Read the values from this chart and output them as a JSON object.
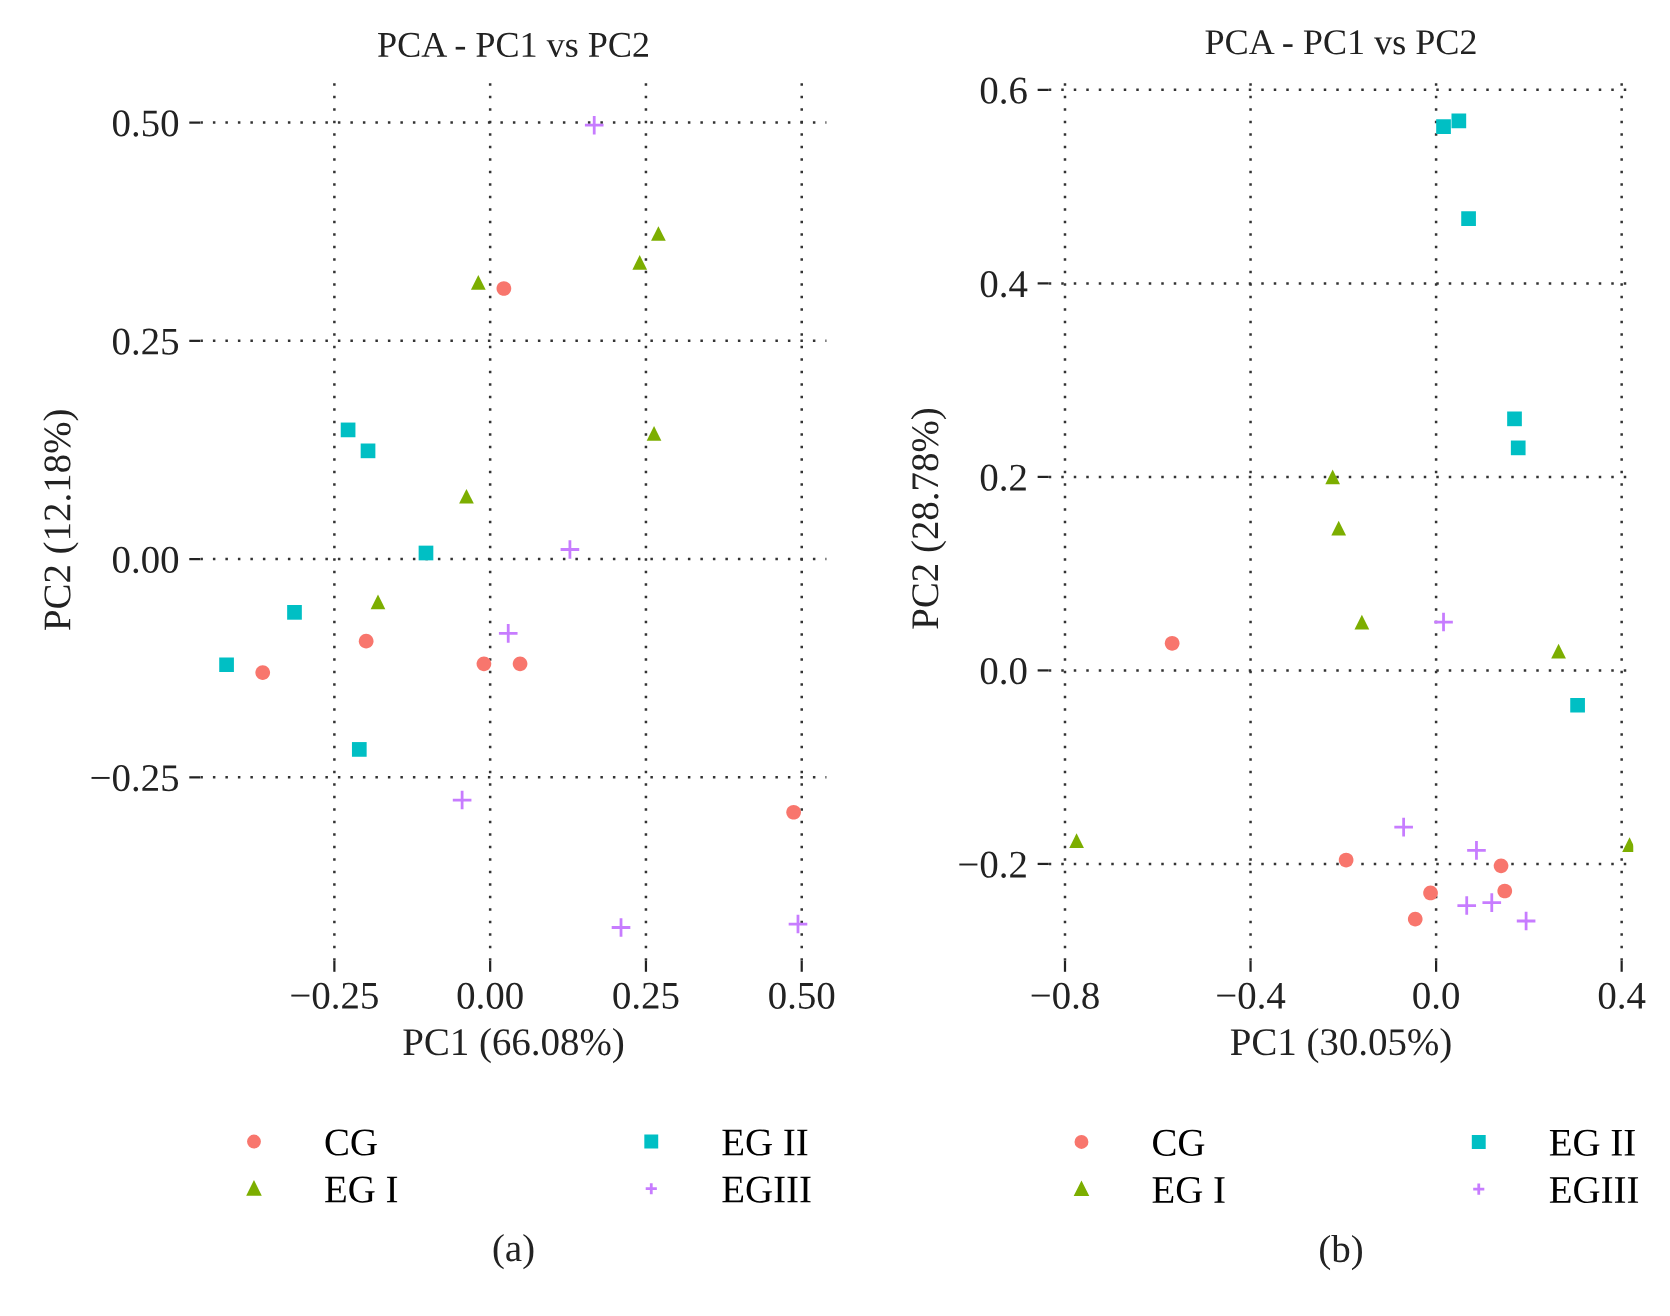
{
  "chart_data": [
    {
      "type": "scatter",
      "title": "PCA - PC1 vs PC2",
      "xlabel": "PC1 (66.08%)",
      "ylabel": "PC2 (12.18%)",
      "annotations": [
        "(a)"
      ],
      "xlim": [
        -0.465,
        0.54
      ],
      "ylim": [
        -0.46,
        0.55
      ],
      "xticks": [
        {
          "value": -0.25,
          "label": "−0.25"
        },
        {
          "value": 0,
          "label": "0.00"
        },
        {
          "value": 0.25,
          "label": "0.25"
        },
        {
          "value": 0.5,
          "label": "0.50"
        }
      ],
      "yticks": [
        {
          "value": -0.25,
          "label": "−0.25"
        },
        {
          "value": 0,
          "label": "0.00"
        },
        {
          "value": 0.25,
          "label": "0.25"
        },
        {
          "value": 0.5,
          "label": "0.50"
        }
      ],
      "grid": true,
      "legend": "bottom",
      "series": [
        {
          "name": "CG",
          "color": "#f8766d",
          "marker": "circle",
          "x": [
            0.022,
            -0.365,
            -0.199,
            -0.01,
            0.048,
            0.487
          ],
          "values": [
            0.31,
            -0.13,
            -0.094,
            -0.12,
            -0.12,
            -0.29
          ]
        },
        {
          "name": "EG I",
          "color": "#7cae00",
          "marker": "triangle",
          "x": [
            -0.019,
            0.24,
            0.27,
            0.263,
            -0.038,
            -0.18
          ],
          "values": [
            0.317,
            0.34,
            0.373,
            0.144,
            0.072,
            -0.049
          ]
        },
        {
          "name": "EG II",
          "color": "#00bfc4",
          "marker": "square",
          "x": [
            -0.228,
            -0.196,
            -0.103,
            -0.314,
            -0.423,
            -0.21
          ],
          "values": [
            0.148,
            0.124,
            0.007,
            -0.061,
            -0.121,
            -0.218
          ]
        },
        {
          "name": "EGIII",
          "color": "#c77cff",
          "marker": "cross",
          "x": [
            0.167,
            0.128,
            0.029,
            -0.045,
            0.21,
            0.494
          ],
          "values": [
            0.497,
            0.011,
            -0.085,
            -0.276,
            -0.422,
            -0.418
          ]
        }
      ]
    },
    {
      "type": "scatter",
      "title": "PCA - PC1 vs PC2",
      "xlabel": "PC1 (30.05%)",
      "ylabel": "PC2 (28.78%)",
      "annotations": [
        "(b)"
      ],
      "xlim": [
        -0.835,
        0.425
      ],
      "ylim": [
        -0.3,
        0.614
      ],
      "xticks": [
        {
          "value": -0.8,
          "label": "−0.8"
        },
        {
          "value": -0.4,
          "label": "−0.4"
        },
        {
          "value": 0,
          "label": "0.0"
        },
        {
          "value": 0.4,
          "label": "0.4"
        }
      ],
      "yticks": [
        {
          "value": -0.2,
          "label": "−0.2"
        },
        {
          "value": 0,
          "label": "0.0"
        },
        0.2,
        0.4,
        0.6
      ],
      "grid": true,
      "legend": "bottom",
      "series": [
        {
          "name": "CG",
          "color": "#f8766d",
          "marker": "circle",
          "x": [
            -0.569,
            -0.194,
            -0.012,
            -0.045,
            0.14,
            0.148
          ],
          "values": [
            0.028,
            -0.196,
            -0.23,
            -0.257,
            -0.202,
            -0.228
          ]
        },
        {
          "name": "EG I",
          "color": "#7cae00",
          "marker": "triangle",
          "x": [
            -0.775,
            -0.223,
            -0.21,
            -0.16,
            0.264,
            0.417
          ],
          "values": [
            -0.176,
            0.2,
            0.147,
            0.05,
            0.02,
            -0.18
          ]
        },
        {
          "name": "EG II",
          "color": "#00bfc4",
          "marker": "square",
          "x": [
            0.016,
            0.049,
            0.07,
            0.169,
            0.177,
            0.305
          ],
          "values": [
            0.562,
            0.568,
            0.467,
            0.26,
            0.23,
            -0.036
          ]
        },
        {
          "name": "EGIII",
          "color": "#c77cff",
          "marker": "cross",
          "x": [
            0.016,
            -0.07,
            0.087,
            0.066,
            0.12,
            0.194
          ],
          "values": [
            0.05,
            -0.162,
            -0.186,
            -0.243,
            -0.24,
            -0.259
          ]
        }
      ]
    }
  ]
}
